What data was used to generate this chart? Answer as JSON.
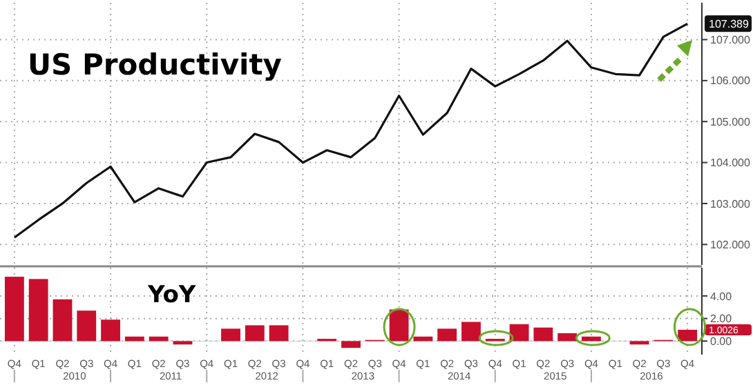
{
  "chart_data": [
    {
      "type": "line",
      "title": "US Productivity",
      "series": [
        {
          "color": "#111111",
          "values": [
            102.17,
            102.6,
            103.0,
            103.5,
            103.9,
            103.03,
            103.37,
            103.17,
            104.0,
            104.13,
            104.7,
            104.5,
            104.0,
            104.3,
            104.13,
            104.6,
            105.63,
            104.68,
            105.21,
            106.29,
            105.86,
            106.16,
            106.49,
            106.97,
            106.32,
            106.16,
            106.13,
            107.07,
            107.389
          ]
        }
      ],
      "ylim": [
        101.5,
        107.9
      ],
      "yticks": [
        {
          "value": 102,
          "label": "102.000"
        },
        {
          "value": 103,
          "label": "103.000"
        },
        {
          "value": 104,
          "label": "104.000"
        },
        {
          "value": 105,
          "label": "105.000"
        },
        {
          "value": 106,
          "label": "106.000"
        },
        {
          "value": 107,
          "label": "107.000"
        }
      ],
      "grid": true,
      "tick_labels": "y",
      "annotations": [
        {
          "text": "107.389",
          "y": 107.389
        }
      ]
    },
    {
      "type": "bar",
      "title": "YoY",
      "categories": [
        "Q4",
        "Q1",
        "Q2",
        "Q3",
        "Q4",
        "Q1",
        "Q2",
        "Q3",
        "Q4",
        "Q1",
        "Q2",
        "Q3",
        "Q4",
        "Q1",
        "Q2",
        "Q3",
        "Q4",
        "Q1",
        "Q2",
        "Q3",
        "Q4",
        "Q1",
        "Q2",
        "Q3",
        "Q4",
        "Q1",
        "Q2",
        "Q3",
        "Q4"
      ],
      "series": [
        {
          "color": "#c8102e",
          "values": [
            5.7,
            5.5,
            3.7,
            2.7,
            1.9,
            0.4,
            0.4,
            -0.3,
            0,
            1.1,
            1.4,
            1.4,
            0,
            0.2,
            -0.6,
            0.1,
            2.8,
            0.4,
            1.1,
            1.7,
            0.2,
            1.5,
            1.2,
            0.7,
            0.4,
            0,
            -0.3,
            0.1,
            1.0026
          ]
        }
      ],
      "ylim": [
        -1.2,
        6.5
      ],
      "yticks": [
        {
          "value": 0,
          "label": "0.00"
        },
        {
          "value": 2,
          "label": "2.00"
        },
        {
          "value": 4,
          "label": "4.00"
        }
      ],
      "grid": true,
      "annotations": [
        "2010",
        "2011",
        "2012",
        "2013",
        "2014",
        "2015",
        "2016",
        "1.0026"
      ]
    }
  ]
}
